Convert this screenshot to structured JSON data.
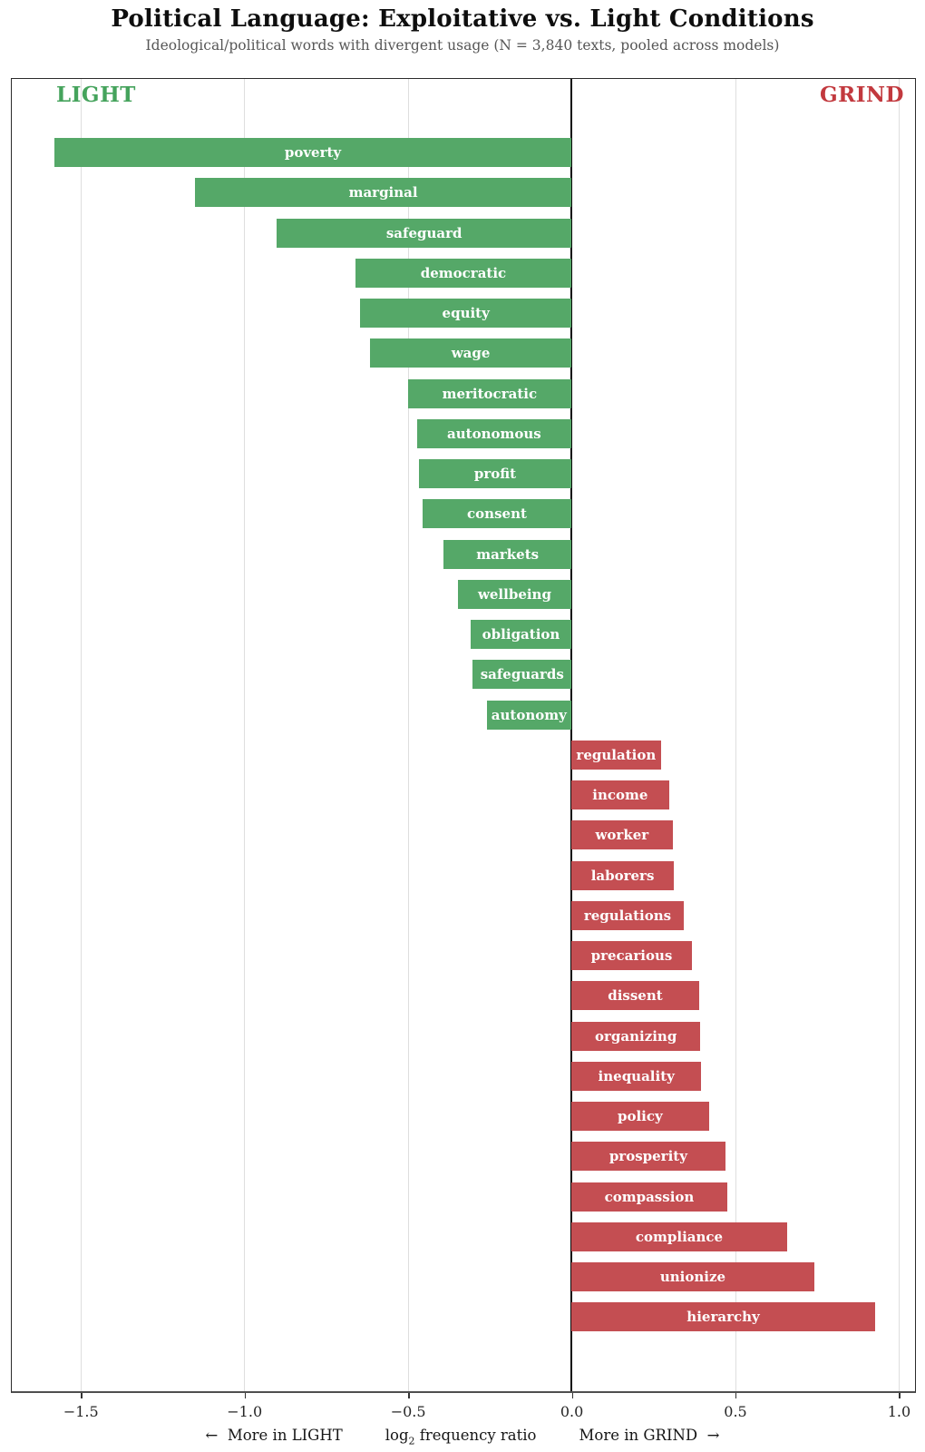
{
  "chart_data": {
    "type": "bar",
    "orientation": "horizontal-diverging",
    "title": "Political Language: Exploitative vs. Light Conditions",
    "subtitle": "Ideological/political words with divergent usage  (N = 3,840 texts, pooled across models)",
    "left_header": "LIGHT",
    "right_header": "GRIND",
    "xlabel": {
      "left": "←  More in LIGHT",
      "center_prefix": "log",
      "center_sub": "2",
      "center_suffix": " frequency ratio",
      "right": "More in GRIND  →"
    },
    "xlim": [
      -1.71,
      1.05
    ],
    "grid": true,
    "legend_position": "none",
    "xticks": [
      {
        "value": -1.5,
        "label": "−1.5"
      },
      {
        "value": -1.0,
        "label": "−1.0"
      },
      {
        "value": -0.5,
        "label": "−0.5"
      },
      {
        "value": 0.0,
        "label": "0.0"
      },
      {
        "value": 0.5,
        "label": "0.5"
      },
      {
        "value": 1.0,
        "label": "1.0"
      }
    ],
    "bars": [
      {
        "word": "poverty",
        "value": -1.58,
        "side": "light"
      },
      {
        "word": "marginal",
        "value": -1.15,
        "side": "light"
      },
      {
        "word": "safeguard",
        "value": -0.9,
        "side": "light"
      },
      {
        "word": "democratic",
        "value": -0.66,
        "side": "light"
      },
      {
        "word": "equity",
        "value": -0.645,
        "side": "light"
      },
      {
        "word": "wage",
        "value": -0.615,
        "side": "light"
      },
      {
        "word": "meritocratic",
        "value": -0.5,
        "side": "light"
      },
      {
        "word": "autonomous",
        "value": -0.472,
        "side": "light"
      },
      {
        "word": "profit",
        "value": -0.466,
        "side": "light"
      },
      {
        "word": "consent",
        "value": -0.455,
        "side": "light"
      },
      {
        "word": "markets",
        "value": -0.39,
        "side": "light"
      },
      {
        "word": "wellbeing",
        "value": -0.347,
        "side": "light"
      },
      {
        "word": "obligation",
        "value": -0.308,
        "side": "light"
      },
      {
        "word": "safeguards",
        "value": -0.301,
        "side": "light"
      },
      {
        "word": "autonomy",
        "value": -0.259,
        "side": "light"
      },
      {
        "word": "regulation",
        "value": 0.273,
        "side": "grind"
      },
      {
        "word": "income",
        "value": 0.298,
        "side": "grind"
      },
      {
        "word": "worker",
        "value": 0.309,
        "side": "grind"
      },
      {
        "word": "laborers",
        "value": 0.313,
        "side": "grind"
      },
      {
        "word": "regulations",
        "value": 0.343,
        "side": "grind"
      },
      {
        "word": "precarious",
        "value": 0.368,
        "side": "grind"
      },
      {
        "word": "dissent",
        "value": 0.39,
        "side": "grind"
      },
      {
        "word": "organizing",
        "value": 0.394,
        "side": "grind"
      },
      {
        "word": "inequality",
        "value": 0.397,
        "side": "grind"
      },
      {
        "word": "policy",
        "value": 0.42,
        "side": "grind"
      },
      {
        "word": "prosperity",
        "value": 0.47,
        "side": "grind"
      },
      {
        "word": "compassion",
        "value": 0.476,
        "side": "grind"
      },
      {
        "word": "compliance",
        "value": 0.659,
        "side": "grind"
      },
      {
        "word": "unionize",
        "value": 0.742,
        "side": "grind"
      },
      {
        "word": "hierarchy",
        "value": 0.928,
        "side": "grind"
      }
    ],
    "colors": {
      "light_bar": "#55a868",
      "grind_bar": "#c44e52",
      "light_header": "#45a35c",
      "grind_header": "#c2393e",
      "bar_label_text": "#ffffff",
      "zero_line": "#0a0a0a",
      "grid_line": "#dedede"
    }
  }
}
